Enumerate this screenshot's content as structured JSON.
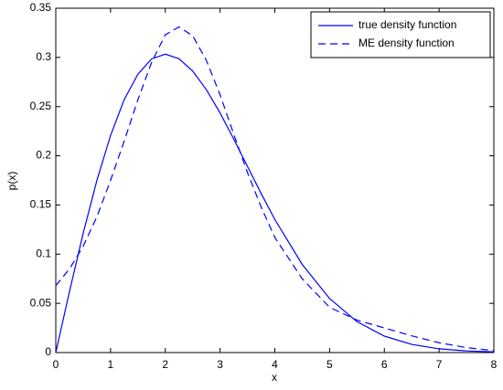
{
  "chart_data": {
    "type": "line",
    "xlabel": "x",
    "ylabel": "p(x)",
    "x": [
      0,
      0.25,
      0.5,
      0.75,
      1,
      1.25,
      1.5,
      1.75,
      2,
      2.25,
      2.5,
      2.75,
      3,
      3.25,
      3.5,
      3.75,
      4,
      4.5,
      5,
      5.5,
      6,
      6.5,
      7,
      7.5,
      8
    ],
    "series": [
      {
        "name": "true density function",
        "color": "#0000ff",
        "dash": "solid",
        "values": [
          0,
          0.062,
          0.1212,
          0.1748,
          0.2206,
          0.2572,
          0.283,
          0.2985,
          0.3033,
          0.2987,
          0.2861,
          0.2672,
          0.2435,
          0.217,
          0.1893,
          0.1617,
          0.1353,
          0.0896,
          0.0549,
          0.0314,
          0.0167,
          0.0083,
          0.0038,
          0.0017,
          0.0007
        ]
      },
      {
        "name": "ME density function",
        "color": "#0000ff",
        "dash": "dashed",
        "values": [
          0.068,
          0.085,
          0.108,
          0.138,
          0.175,
          0.215,
          0.257,
          0.295,
          0.323,
          0.331,
          0.322,
          0.297,
          0.262,
          0.222,
          0.183,
          0.148,
          0.117,
          0.075,
          0.046,
          0.033,
          0.025,
          0.017,
          0.01,
          0.005,
          0.002
        ]
      }
    ],
    "xlim": [
      0,
      8
    ],
    "xticks": [
      0,
      1,
      2,
      3,
      4,
      5,
      6,
      7,
      8
    ],
    "ylim": [
      0,
      0.35
    ],
    "yticks": [
      0,
      0.05,
      0.1,
      0.15,
      0.2,
      0.25,
      0.3,
      0.35
    ],
    "grid": false,
    "legend": "upper right"
  }
}
